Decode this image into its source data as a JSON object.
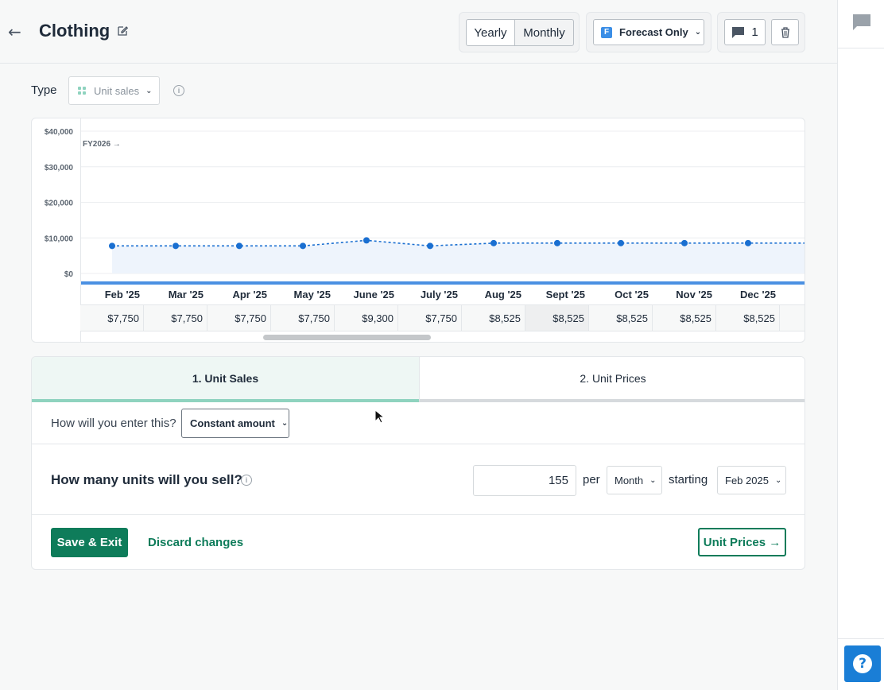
{
  "header": {
    "title": "Clothing",
    "period_toggle": [
      "Yearly",
      "Monthly"
    ],
    "forecast_selector": "Forecast Only",
    "comment_count": "1"
  },
  "type_row": {
    "label": "Type",
    "selected": "Unit sales"
  },
  "chart_data": {
    "type": "line",
    "fiscal_marker": "FY2026 →",
    "y_ticks": [
      "$40,000",
      "$30,000",
      "$20,000",
      "$10,000",
      "$0"
    ],
    "ylim": [
      0,
      40000
    ],
    "categories": [
      "Feb '25",
      "Mar '25",
      "Apr '25",
      "May '25",
      "June '25",
      "July '25",
      "Aug '25",
      "Sept '25",
      "Oct '25",
      "Nov '25",
      "Dec '25"
    ],
    "values": [
      7750,
      7750,
      7750,
      7750,
      9300,
      7750,
      8525,
      8525,
      8525,
      8525,
      8525
    ],
    "value_labels": [
      "$7,750",
      "$7,750",
      "$7,750",
      "$7,750",
      "$9,300",
      "$7,750",
      "$8,525",
      "$8,525",
      "$8,525",
      "$8,525",
      "$8,525"
    ],
    "colors": {
      "line": "#1a6fd1",
      "area": "#eef4fc",
      "baseline": "#4a90e2"
    }
  },
  "tabs": [
    "1. Unit Sales",
    "2. Unit Prices"
  ],
  "entry": {
    "question": "How will you enter this?",
    "method": "Constant amount"
  },
  "units": {
    "question": "How many units will you sell?",
    "value": "155",
    "per_label": "per",
    "period": "Month",
    "starting_label": "starting",
    "start": "Feb 2025"
  },
  "footer": {
    "save": "Save & Exit",
    "discard": "Discard changes",
    "next": "Unit Prices →"
  },
  "help": "?"
}
